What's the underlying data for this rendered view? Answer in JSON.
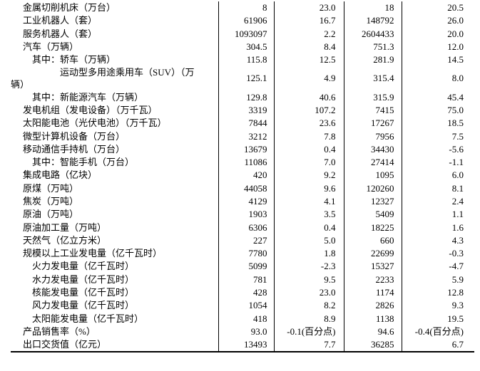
{
  "rows": [
    {
      "label": "金属切削机床（万台）",
      "level": 0,
      "month_output": "8",
      "month_growth": "23.0",
      "cum_output": "18",
      "cum_growth": "20.5"
    },
    {
      "label": "工业机器人（套）",
      "level": 0,
      "month_output": "61906",
      "month_growth": "16.7",
      "cum_output": "148792",
      "cum_growth": "26.0"
    },
    {
      "label": "服务机器人（套）",
      "level": 0,
      "month_output": "1093097",
      "month_growth": "2.2",
      "cum_output": "2604433",
      "cum_growth": "20.0"
    },
    {
      "label": "汽车（万辆）",
      "level": 0,
      "month_output": "304.5",
      "month_growth": "8.4",
      "cum_output": "751.3",
      "cum_growth": "12.0"
    },
    {
      "label": "其中：轿车（万辆）",
      "level": 1,
      "month_output": "115.8",
      "month_growth": "12.5",
      "cum_output": "281.9",
      "cum_growth": "14.5"
    },
    {
      "label": "运动型多用途乘用车（SUV）（万",
      "label_wrap": "辆）",
      "level": 2,
      "month_output": "125.1",
      "month_growth": "4.9",
      "cum_output": "315.4",
      "cum_growth": "8.0"
    },
    {
      "label": "其中：新能源汽车（万辆）",
      "level": 1,
      "month_output": "129.8",
      "month_growth": "40.6",
      "cum_output": "315.9",
      "cum_growth": "45.4"
    },
    {
      "label": "发电机组（发电设备）（万千瓦）",
      "level": 0,
      "month_output": "3319",
      "month_growth": "107.2",
      "cum_output": "7415",
      "cum_growth": "75.0"
    },
    {
      "label": "太阳能电池（光伏电池）（万千瓦）",
      "level": 0,
      "month_output": "7844",
      "month_growth": "23.6",
      "cum_output": "17267",
      "cum_growth": "18.5"
    },
    {
      "label": "微型计算机设备（万台）",
      "level": 0,
      "month_output": "3212",
      "month_growth": "7.8",
      "cum_output": "7956",
      "cum_growth": "7.5"
    },
    {
      "label": "移动通信手持机（万台）",
      "level": 0,
      "month_output": "13679",
      "month_growth": "0.4",
      "cum_output": "34430",
      "cum_growth": "-5.6"
    },
    {
      "label": "其中：智能手机（万台）",
      "level": 1,
      "month_output": "11086",
      "month_growth": "7.0",
      "cum_output": "27414",
      "cum_growth": "-1.1"
    },
    {
      "label": "集成电路（亿块）",
      "level": 0,
      "month_output": "420",
      "month_growth": "9.2",
      "cum_output": "1095",
      "cum_growth": "6.0"
    },
    {
      "label": "原煤（万吨）",
      "level": 0,
      "month_output": "44058",
      "month_growth": "9.6",
      "cum_output": "120260",
      "cum_growth": "8.1"
    },
    {
      "label": "焦炭（万吨）",
      "level": 0,
      "month_output": "4129",
      "month_growth": "4.1",
      "cum_output": "12327",
      "cum_growth": "2.4"
    },
    {
      "label": "原油（万吨）",
      "level": 0,
      "month_output": "1903",
      "month_growth": "3.5",
      "cum_output": "5409",
      "cum_growth": "1.1"
    },
    {
      "label": "原油加工量（万吨）",
      "level": 0,
      "month_output": "6306",
      "month_growth": "0.4",
      "cum_output": "18225",
      "cum_growth": "1.6"
    },
    {
      "label": "天然气（亿立方米）",
      "level": 0,
      "month_output": "227",
      "month_growth": "5.0",
      "cum_output": "660",
      "cum_growth": "4.3"
    },
    {
      "label": "规模以上工业发电量（亿千瓦时）",
      "level": 0,
      "month_output": "7780",
      "month_growth": "1.8",
      "cum_output": "22699",
      "cum_growth": "-0.3"
    },
    {
      "label": "火力发电量（亿千瓦时）",
      "level": 1,
      "month_output": "5099",
      "month_growth": "-2.3",
      "cum_output": "15327",
      "cum_growth": "-4.7"
    },
    {
      "label": "水力发电量（亿千瓦时）",
      "level": 1,
      "month_output": "781",
      "month_growth": "9.5",
      "cum_output": "2233",
      "cum_growth": "5.9"
    },
    {
      "label": "核能发电量（亿千瓦时）",
      "level": 1,
      "month_output": "428",
      "month_growth": "23.0",
      "cum_output": "1174",
      "cum_growth": "12.8"
    },
    {
      "label": "风力发电量（亿千瓦时）",
      "level": 1,
      "month_output": "1054",
      "month_growth": "8.2",
      "cum_output": "2826",
      "cum_growth": "9.3"
    },
    {
      "label": "太阳能发电量（亿千瓦时）",
      "level": 1,
      "month_output": "418",
      "month_growth": "8.9",
      "cum_output": "1138",
      "cum_growth": "19.5"
    },
    {
      "label": "产品销售率（%）",
      "level": 0,
      "month_output": "93.0",
      "month_growth": "-0.1(百分点)",
      "cum_output": "94.6",
      "cum_growth": "-0.4(百分点)"
    },
    {
      "label": "出口交货值（亿元）",
      "level": 0,
      "month_output": "13493",
      "month_growth": "7.7",
      "cum_output": "36285",
      "cum_growth": "6.7"
    }
  ]
}
